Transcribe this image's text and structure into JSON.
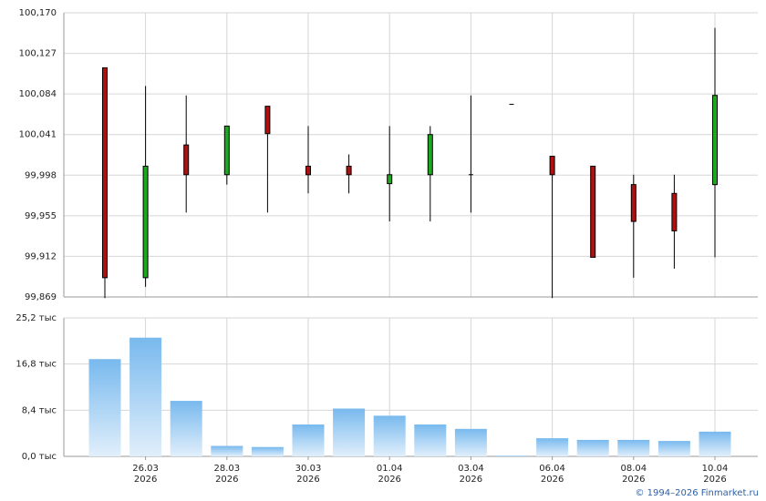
{
  "chart_data": [
    {
      "type": "candlestick",
      "name": "price",
      "y_ticks": [
        "100,170",
        "100,127",
        "100,084",
        "100,041",
        "99,998",
        "99,955",
        "99,912",
        "99,869"
      ],
      "ylim": [
        99.869,
        100.17
      ],
      "grid": true,
      "candles": [
        {
          "o": 100.1117,
          "h": 100.1117,
          "l": 99.8678,
          "c": 99.8894
        },
        {
          "o": 99.8894,
          "h": 100.0925,
          "l": 99.8797,
          "c": 100.0075
        },
        {
          "o": 100.03,
          "h": 100.0825,
          "l": 99.9584,
          "c": 99.9985
        },
        {
          "o": 99.9985,
          "h": 100.05,
          "l": 99.988,
          "c": 100.05
        },
        {
          "o": 100.071,
          "h": 100.071,
          "l": 99.9584,
          "c": 100.042
        },
        {
          "o": 100.0075,
          "h": 100.05,
          "l": 99.9787,
          "c": 99.9985
        },
        {
          "o": 100.0075,
          "h": 100.02,
          "l": 99.9787,
          "c": 99.9985
        },
        {
          "o": 99.989,
          "h": 100.05,
          "l": 99.949,
          "c": 99.9985
        },
        {
          "o": 99.9985,
          "h": 100.05,
          "l": 99.949,
          "c": 100.041
        },
        {
          "o": 99.9985,
          "h": 100.0825,
          "l": 99.9584,
          "c": 99.9985
        },
        {
          "o": 100.073,
          "h": 100.073,
          "l": 100.073,
          "c": 100.073
        },
        {
          "o": 100.018,
          "h": 100.018,
          "l": 99.8678,
          "c": 99.9985
        },
        {
          "o": 100.0075,
          "h": 100.0075,
          "l": 99.911,
          "c": 99.911
        },
        {
          "o": 99.988,
          "h": 99.9985,
          "l": 99.8894,
          "c": 99.949
        },
        {
          "o": 99.9787,
          "h": 99.9985,
          "l": 99.899,
          "c": 99.939
        },
        {
          "o": 99.988,
          "h": 100.154,
          "l": 99.911,
          "c": 100.0825
        }
      ]
    },
    {
      "type": "bar",
      "name": "volume",
      "y_ticks": [
        "25,2 тыс",
        "16,8 тыс",
        "8,4 тыс",
        "0,0 тыс"
      ],
      "ylim": [
        0,
        25200
      ],
      "grid": true,
      "values": [
        17700,
        21600,
        10100,
        1900,
        1700,
        5800,
        8700,
        7400,
        5800,
        5000,
        150,
        3300,
        3000,
        3000,
        2800,
        4500
      ],
      "x_tick_labels": [
        {
          "day": "26.03",
          "year": "2026"
        },
        {
          "day": "28.03",
          "year": "2026"
        },
        {
          "day": "30.03",
          "year": "2026"
        },
        {
          "day": "01.04",
          "year": "2026"
        },
        {
          "day": "03.04",
          "year": "2026"
        },
        {
          "day": "06.04",
          "year": "2026"
        },
        {
          "day": "08.04",
          "year": "2026"
        },
        {
          "day": "10.04",
          "year": "2026"
        }
      ]
    }
  ],
  "colors": {
    "up": "#1fa81f",
    "down": "#b01010",
    "wick": "#000000",
    "grid": "#d6d6d6",
    "axis": "#999999",
    "bar_top": "#78b9ee",
    "bar_bottom": "#e1effb"
  },
  "copyright": "© 1994–2026 Finmarket.ru"
}
